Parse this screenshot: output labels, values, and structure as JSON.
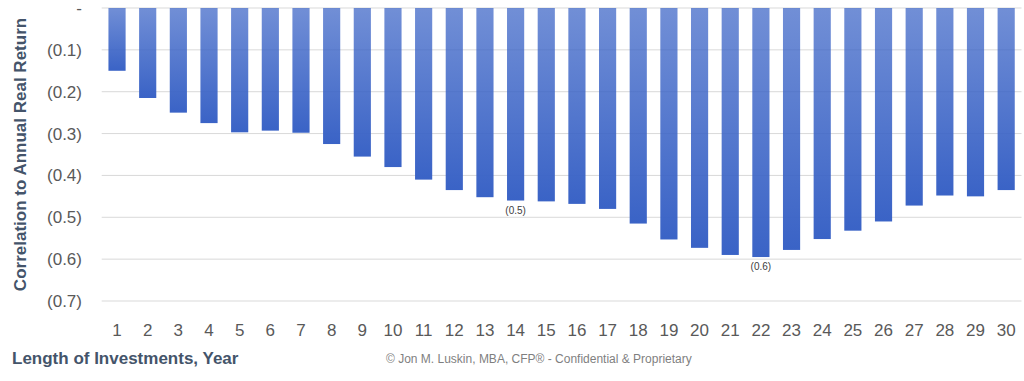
{
  "chart_data": {
    "type": "bar",
    "y_label": "Correlation to Annual Real Return",
    "x_label": "Length of Investments, Year",
    "annotation": "© Jon M. Luskin, MBA, CFP® - Confidential & Proprietary",
    "categories": [
      "1",
      "2",
      "3",
      "4",
      "5",
      "6",
      "7",
      "8",
      "9",
      "10",
      "11",
      "12",
      "13",
      "14",
      "15",
      "16",
      "17",
      "18",
      "19",
      "20",
      "21",
      "22",
      "23",
      "24",
      "25",
      "26",
      "27",
      "28",
      "29",
      "30"
    ],
    "values": [
      -0.15,
      -0.215,
      -0.25,
      -0.275,
      -0.297,
      -0.293,
      -0.298,
      -0.325,
      -0.355,
      -0.38,
      -0.41,
      -0.435,
      -0.452,
      -0.46,
      -0.462,
      -0.468,
      -0.48,
      -0.515,
      -0.553,
      -0.573,
      -0.59,
      -0.595,
      -0.578,
      -0.552,
      -0.532,
      -0.51,
      -0.472,
      -0.448,
      -0.45,
      -0.435
    ],
    "data_labels": true,
    "value_labels": [
      null,
      null,
      null,
      null,
      null,
      null,
      null,
      null,
      null,
      null,
      null,
      null,
      null,
      "(0.5)",
      null,
      null,
      null,
      null,
      null,
      null,
      null,
      "(0.6)",
      null,
      null,
      null,
      null,
      null,
      null,
      null,
      null
    ],
    "color": "#3a63c6",
    "ylim": [
      -0.7,
      0
    ],
    "yticks": [
      {
        "value": 0,
        "label": "-"
      },
      {
        "value": -0.1,
        "label": "(0.1)"
      },
      {
        "value": -0.2,
        "label": "(0.2)"
      },
      {
        "value": -0.3,
        "label": "(0.3)"
      },
      {
        "value": -0.4,
        "label": "(0.4)"
      },
      {
        "value": -0.5,
        "label": "(0.5)"
      },
      {
        "value": -0.6,
        "label": "(0.6)"
      },
      {
        "value": -0.7,
        "label": "(0.7)"
      }
    ],
    "grid": true
  }
}
